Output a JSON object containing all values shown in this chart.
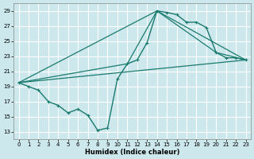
{
  "xlabel": "Humidex (Indice chaleur)",
  "bg_color": "#cce8ec",
  "grid_color": "#ffffff",
  "line_color": "#1a7a6e",
  "xlim": [
    -0.5,
    23.5
  ],
  "ylim": [
    12,
    30
  ],
  "xticks": [
    0,
    1,
    2,
    3,
    4,
    5,
    6,
    7,
    8,
    9,
    10,
    11,
    12,
    13,
    14,
    15,
    16,
    17,
    18,
    19,
    20,
    21,
    22,
    23
  ],
  "yticks": [
    13,
    15,
    17,
    19,
    21,
    23,
    25,
    27,
    29
  ],
  "main_line": {
    "x": [
      0,
      1,
      2,
      3,
      4,
      5,
      6,
      7,
      8,
      9,
      10,
      11,
      12,
      13,
      14,
      15,
      16,
      17,
      18,
      19,
      20,
      21,
      22,
      23
    ],
    "y": [
      19.5,
      19.0,
      18.5,
      17.0,
      16.5,
      15.5,
      16.0,
      15.2,
      13.2,
      13.5,
      20.0,
      22.0,
      22.5,
      24.8,
      29.0,
      28.8,
      28.5,
      27.5,
      27.5,
      26.8,
      23.5,
      22.8,
      22.8,
      22.5
    ]
  },
  "line2": {
    "x": [
      0,
      23
    ],
    "y": [
      19.5,
      22.5
    ]
  },
  "line3": {
    "x": [
      0,
      14,
      23
    ],
    "y": [
      19.5,
      29.0,
      22.5
    ]
  },
  "line4": {
    "x": [
      0,
      11,
      14,
      20,
      23
    ],
    "y": [
      19.5,
      22.0,
      29.0,
      23.5,
      22.5
    ]
  }
}
